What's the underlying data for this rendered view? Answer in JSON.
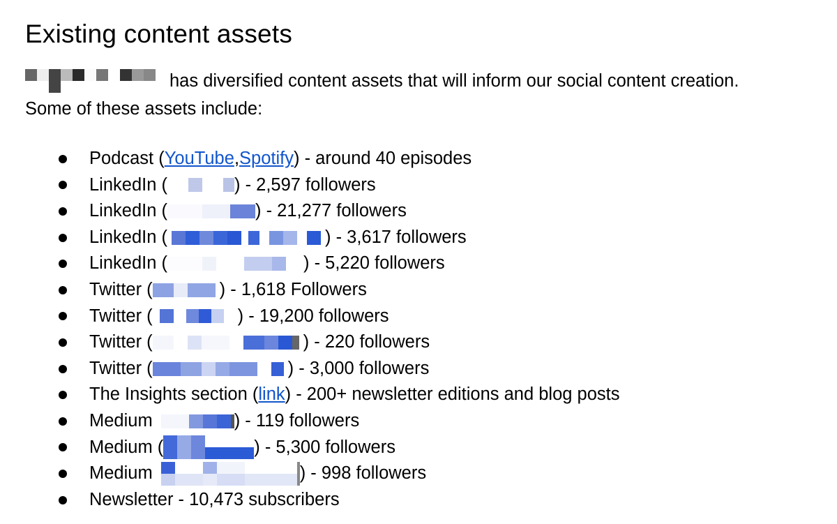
{
  "heading": "Existing content assets",
  "intro": {
    "line1": "has diversified content assets that will inform our social content creation.",
    "line2": "Some of these assets include:"
  },
  "items": [
    {
      "label": "Podcast (",
      "links": [
        "YouTube",
        "Spotify"
      ],
      "sep": ", ",
      "suffix": ") - around 40 episodes"
    },
    {
      "label": "LinkedIn (",
      "suffix": ") - 2,597 followers"
    },
    {
      "label": "LinkedIn (",
      "suffix": ") - 21,277 followers"
    },
    {
      "label": "LinkedIn (",
      "suffix": ") - 3,617 followers"
    },
    {
      "label": "LinkedIn (",
      "suffix": ") - 5,220 followers"
    },
    {
      "label": "Twitter (",
      "suffix": ") - 1,618 Followers"
    },
    {
      "label": "Twitter (",
      "suffix": ") - 19,200 followers"
    },
    {
      "label": "Twitter (",
      "suffix": ") - 220 followers"
    },
    {
      "label": "Twitter (",
      "suffix": ") - 3,000 followers"
    },
    {
      "label": "The Insights section (",
      "links": [
        "link"
      ],
      "suffix": ") - 200+ newsletter editions and blog posts"
    },
    {
      "label": "Medium",
      "suffix": ") - 119 followers"
    },
    {
      "label": "Medium (",
      "suffix": ") - 5,300 followers"
    },
    {
      "label": "Medium",
      "suffix": ") - 998 followers"
    },
    {
      "label": "Newsletter - 10,473 subscribers"
    }
  ],
  "colors": {
    "link": "#1155cc",
    "redaction_blue": "#3366dd"
  }
}
